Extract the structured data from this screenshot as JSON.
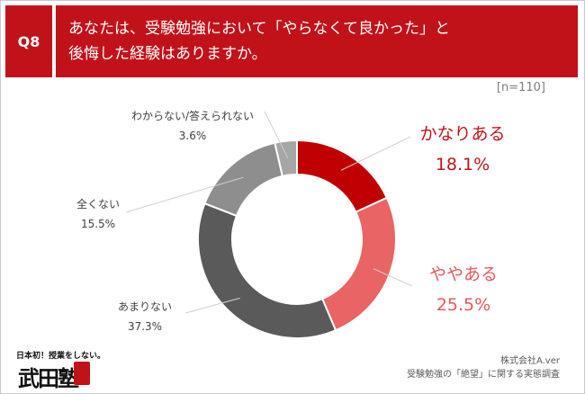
{
  "question": {
    "id": "Q8",
    "line1": "あなたは、受験勉強において「やらなくて良かった」と",
    "line2": "後悔した経験はありますか。"
  },
  "sample_size": "[n=110]",
  "chart_data": {
    "type": "pie",
    "donut": true,
    "categories": [
      "かなりある",
      "ややある",
      "あまりない",
      "全くない",
      "わからない/答えられない"
    ],
    "values": [
      18.1,
      25.5,
      37.3,
      15.5,
      3.6
    ],
    "value_labels": [
      "18.1%",
      "25.5%",
      "37.3%",
      "15.5%",
      "3.6%"
    ],
    "colors": [
      "#c00000",
      "#e96464",
      "#5a5a5a",
      "#8e8e8e",
      "#a6a6a6"
    ],
    "start": "12 o'clock, clockwise",
    "legend": "none (leader-line labels)"
  },
  "logo": {
    "tagline": "日本初！授業をしない。",
    "name": "武田塾"
  },
  "source": {
    "company": "株式会社A.ver",
    "survey": "受験勉強の「絶望」に関する実態調査"
  }
}
